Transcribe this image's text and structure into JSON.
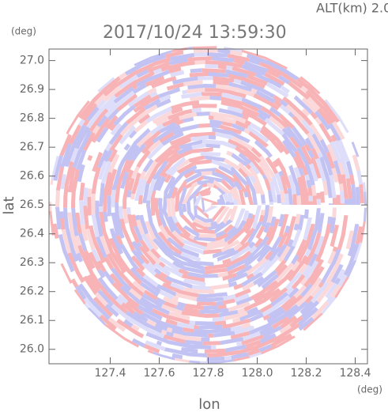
{
  "chart_data": {
    "type": "ppi",
    "title": "2017/10/24 13:59:30",
    "subtitle": "ALT(km) 2.0",
    "x_label": "lon",
    "x_unit": "(deg)",
    "y_label": "lat",
    "y_unit": "(deg)",
    "xlim": [
      127.15,
      128.45
    ],
    "ylim": [
      25.95,
      27.04
    ],
    "xticks": [
      127.4,
      127.6,
      127.8,
      {
        "value": 128,
        "label": "128.0"
      },
      128.2,
      128.4
    ],
    "yticks": [
      {
        "value": 26,
        "label": "26.0"
      },
      26.1,
      26.2,
      26.3,
      26.4,
      26.5,
      26.6,
      26.7,
      26.8,
      26.9,
      {
        "value": 27,
        "label": "27.0"
      }
    ]
  }
}
